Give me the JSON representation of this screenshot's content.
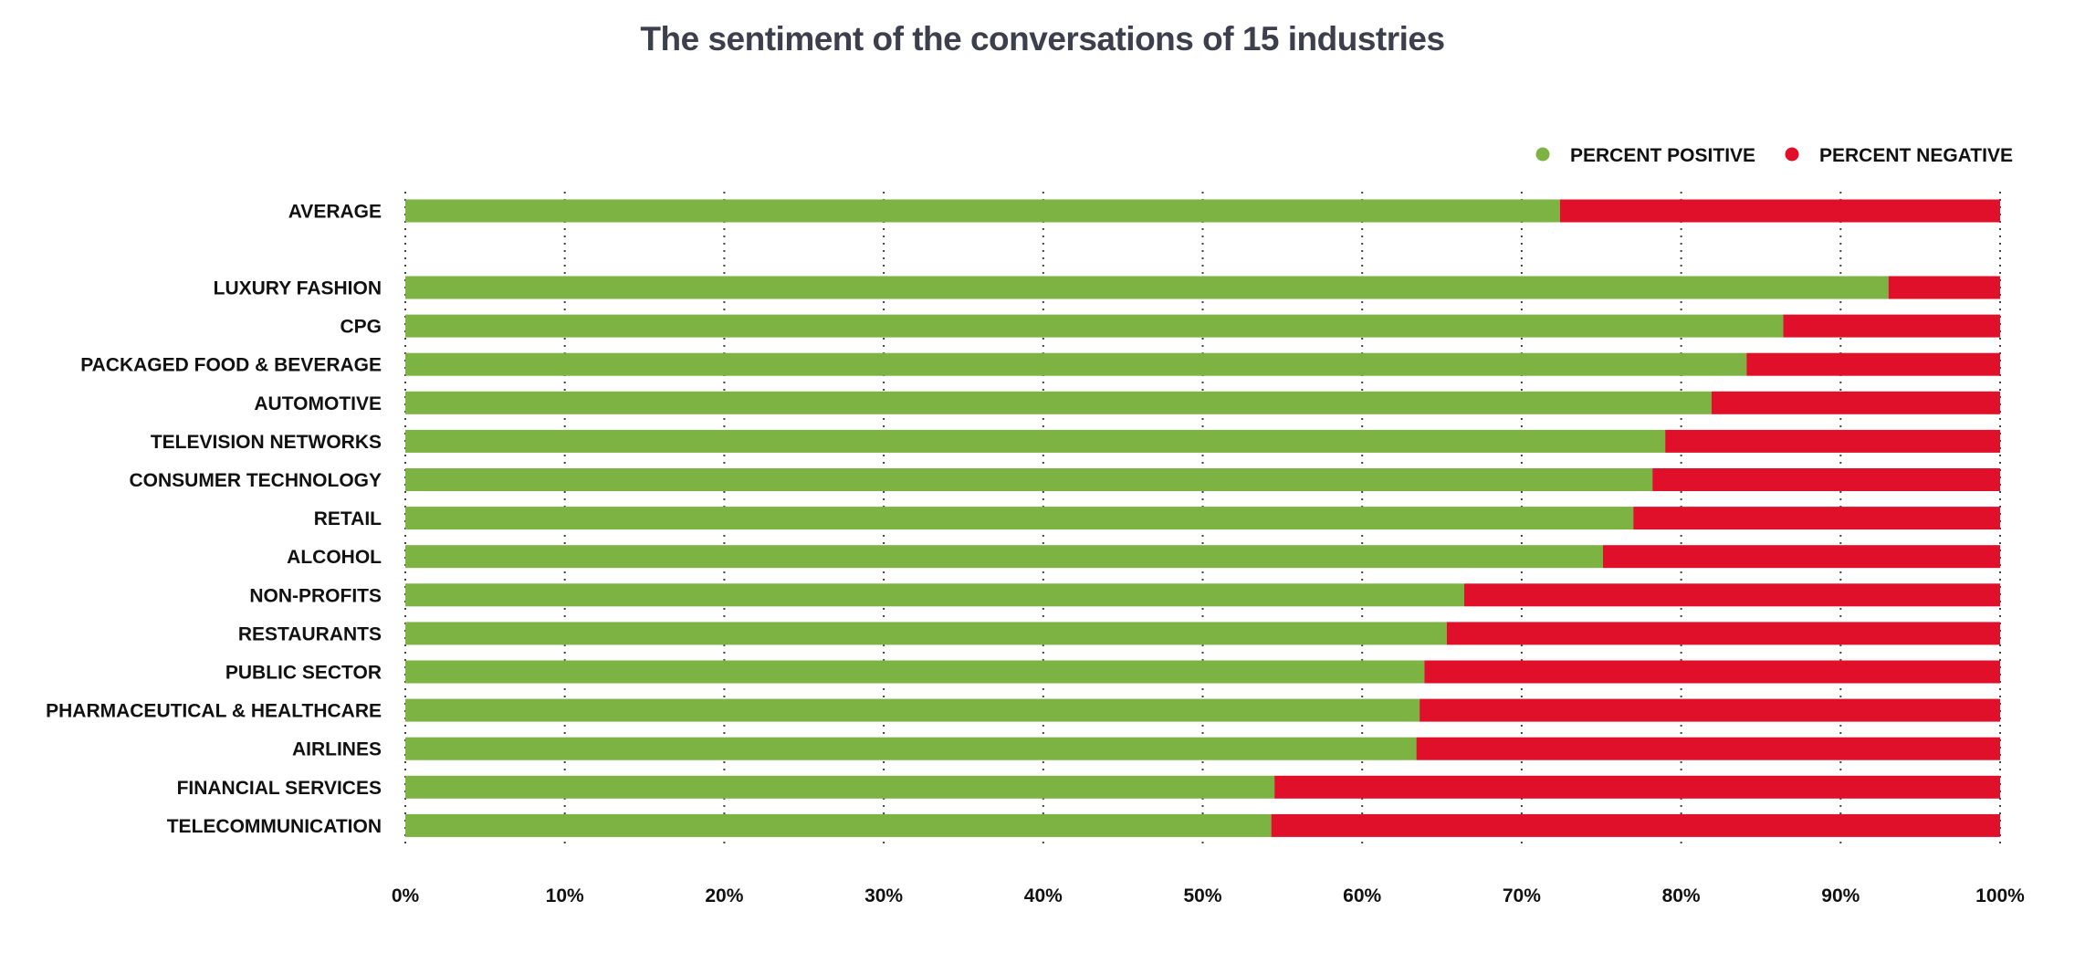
{
  "chart_data": {
    "type": "bar",
    "orientation": "horizontal",
    "stacked": true,
    "title": "The sentiment of the conversations of 15 industries",
    "xlabel": "",
    "ylabel": "",
    "xlim": [
      0,
      100
    ],
    "x_ticks": [
      "0%",
      "10%",
      "20%",
      "30%",
      "40%",
      "50%",
      "60%",
      "70%",
      "80%",
      "90%",
      "100%"
    ],
    "grid": "vertical-dotted",
    "legend_position": "top-right",
    "categories": [
      "AVERAGE",
      "LUXURY FASHION",
      "CPG",
      "PACKAGED FOOD & BEVERAGE",
      "AUTOMOTIVE",
      "TELEVISION NETWORKS",
      "CONSUMER TECHNOLOGY",
      "RETAIL",
      "ALCOHOL",
      "NON-PROFITS",
      "RESTAURANTS",
      "PUBLIC SECTOR",
      "PHARMACEUTICAL & HEALTHCARE",
      "AIRLINES",
      "FINANCIAL SERVICES",
      "TELECOMMUNICATION"
    ],
    "series": [
      {
        "name": "PERCENT POSITIVE",
        "color": "#7cb342",
        "values": [
          72.4,
          93.0,
          86.4,
          84.1,
          81.9,
          79.0,
          78.2,
          77.0,
          75.1,
          66.4,
          65.3,
          63.9,
          63.6,
          63.4,
          54.5,
          54.3
        ]
      },
      {
        "name": "PERCENT NEGATIVE",
        "color": "#e0102a",
        "values": [
          27.6,
          7.0,
          13.6,
          15.9,
          18.1,
          21.0,
          21.8,
          23.0,
          24.9,
          33.6,
          34.7,
          36.1,
          36.4,
          36.6,
          45.5,
          45.7
        ]
      }
    ]
  }
}
